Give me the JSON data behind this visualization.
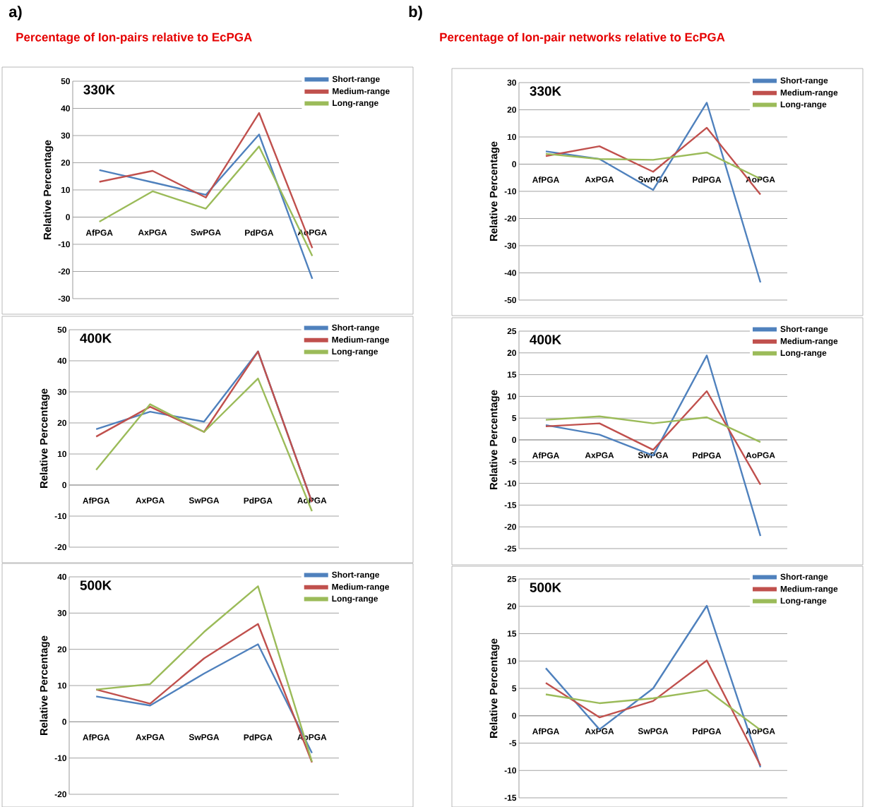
{
  "chart_data": [
    {
      "type": "line",
      "title": "330K",
      "ylabel": "Relative Percentage",
      "annotations": [
        "a)",
        "Percentage of Ion-pairs relative to EcPGA"
      ],
      "categories": [
        "AfPGA",
        "AxPGA",
        "SwPGA",
        "PdPGA",
        "AoPGA"
      ],
      "ylim": [
        -30,
        50
      ],
      "yticks": [
        -30,
        -20,
        -10,
        0,
        10,
        20,
        30,
        40,
        50
      ],
      "grid": "y",
      "legend": "top right",
      "series": [
        {
          "name": "Short-range",
          "color": "#4f81bd",
          "values": [
            17.3,
            12.8,
            8.2,
            30.4,
            -22.7
          ]
        },
        {
          "name": "Medium-range",
          "color": "#c0504d",
          "values": [
            13,
            17,
            7.2,
            38.3,
            -11.4
          ]
        },
        {
          "name": "Long-range",
          "color": "#9bbb59",
          "values": [
            -1.7,
            9.5,
            3.1,
            26,
            -14.3
          ]
        }
      ]
    },
    {
      "type": "line",
      "title": "330K",
      "ylabel": "Relative Percentage",
      "annotations": [
        "b)",
        "Percentage of Ion-pair networks relative to EcPGA"
      ],
      "categories": [
        "AfPGA",
        "AxPGA",
        "SwPGA",
        "PdPGA",
        "AoPGA"
      ],
      "ylim": [
        -50,
        30
      ],
      "yticks": [
        -50,
        -40,
        -30,
        -20,
        -10,
        0,
        10,
        20,
        30
      ],
      "grid": "y",
      "legend": "top right",
      "series": [
        {
          "name": "Short-range",
          "color": "#4f81bd",
          "values": [
            4.7,
            1.9,
            -9.5,
            22.6,
            -43.5
          ]
        },
        {
          "name": "Medium-range",
          "color": "#c0504d",
          "values": [
            3,
            6.6,
            -2.8,
            13.4,
            -11.2
          ]
        },
        {
          "name": "Long-range",
          "color": "#9bbb59",
          "values": [
            3.8,
            1.9,
            1.6,
            4.3,
            -5.4
          ]
        }
      ]
    },
    {
      "type": "line",
      "title": "400K",
      "ylabel": "Relative Percentage",
      "categories": [
        "AfPGA",
        "AxPGA",
        "SwPGA",
        "PdPGA",
        "AoPGA"
      ],
      "ylim": [
        -20,
        50
      ],
      "yticks": [
        -20,
        -10,
        0,
        10,
        20,
        30,
        40,
        50
      ],
      "grid": "y",
      "legend": "top right",
      "series": [
        {
          "name": "Short-range",
          "color": "#4f81bd",
          "values": [
            18,
            23.6,
            20.4,
            43,
            -5.5
          ]
        },
        {
          "name": "Medium-range",
          "color": "#c0504d",
          "values": [
            15.6,
            25.2,
            17.1,
            43,
            -5.5
          ]
        },
        {
          "name": "Long-range",
          "color": "#9bbb59",
          "values": [
            4.9,
            26,
            17.1,
            34.3,
            -8.4
          ]
        }
      ]
    },
    {
      "type": "line",
      "title": "400K",
      "ylabel": "Relative Percentage",
      "categories": [
        "AfPGA",
        "AxPGA",
        "SwPGA",
        "PdPGA",
        "AoPGA"
      ],
      "ylim": [
        -25,
        25
      ],
      "yticks": [
        -25,
        -20,
        -15,
        -10,
        -5,
        0,
        5,
        10,
        15,
        20,
        25
      ],
      "grid": "y",
      "legend": "top right",
      "series": [
        {
          "name": "Short-range",
          "color": "#4f81bd",
          "values": [
            3.4,
            1.2,
            -3.6,
            19.4,
            -22.1
          ]
        },
        {
          "name": "Medium-range",
          "color": "#c0504d",
          "values": [
            3.1,
            3.8,
            -2.3,
            11.2,
            -10.3
          ]
        },
        {
          "name": "Long-range",
          "color": "#9bbb59",
          "values": [
            4.6,
            5.4,
            3.8,
            5.2,
            -0.5
          ]
        }
      ]
    },
    {
      "type": "line",
      "title": "500K",
      "ylabel": "Relative Percentage",
      "categories": [
        "AfPGA",
        "AxPGA",
        "SwPGA",
        "PdPGA",
        "AoPGA"
      ],
      "ylim": [
        -20,
        40
      ],
      "yticks": [
        -20,
        -10,
        0,
        10,
        20,
        30,
        40
      ],
      "grid": "y",
      "legend": "top right",
      "series": [
        {
          "name": "Short-range",
          "color": "#4f81bd",
          "values": [
            7,
            4.5,
            13.3,
            21.4,
            -8.6
          ]
        },
        {
          "name": "Medium-range",
          "color": "#c0504d",
          "values": [
            8.9,
            5,
            17.5,
            27,
            -11.2
          ]
        },
        {
          "name": "Long-range",
          "color": "#9bbb59",
          "values": [
            8.9,
            10.4,
            24.8,
            37.4,
            -11
          ]
        }
      ]
    },
    {
      "type": "line",
      "title": "500K",
      "ylabel": "Relative Percentage",
      "categories": [
        "AfPGA",
        "AxPGA",
        "SwPGA",
        "PdPGA",
        "AoPGA"
      ],
      "ylim": [
        -15,
        25
      ],
      "yticks": [
        -15,
        -10,
        -5,
        0,
        5,
        10,
        15,
        20,
        25
      ],
      "grid": "y",
      "legend": "top right",
      "series": [
        {
          "name": "Short-range",
          "color": "#4f81bd",
          "values": [
            8.7,
            -2.5,
            5,
            20.1,
            -9.4
          ]
        },
        {
          "name": "Medium-range",
          "color": "#c0504d",
          "values": [
            6,
            -0.3,
            2.7,
            10.1,
            -9.1
          ]
        },
        {
          "name": "Long-range",
          "color": "#9bbb59",
          "values": [
            3.9,
            2.3,
            3.2,
            4.7,
            -2.6
          ]
        }
      ]
    }
  ]
}
